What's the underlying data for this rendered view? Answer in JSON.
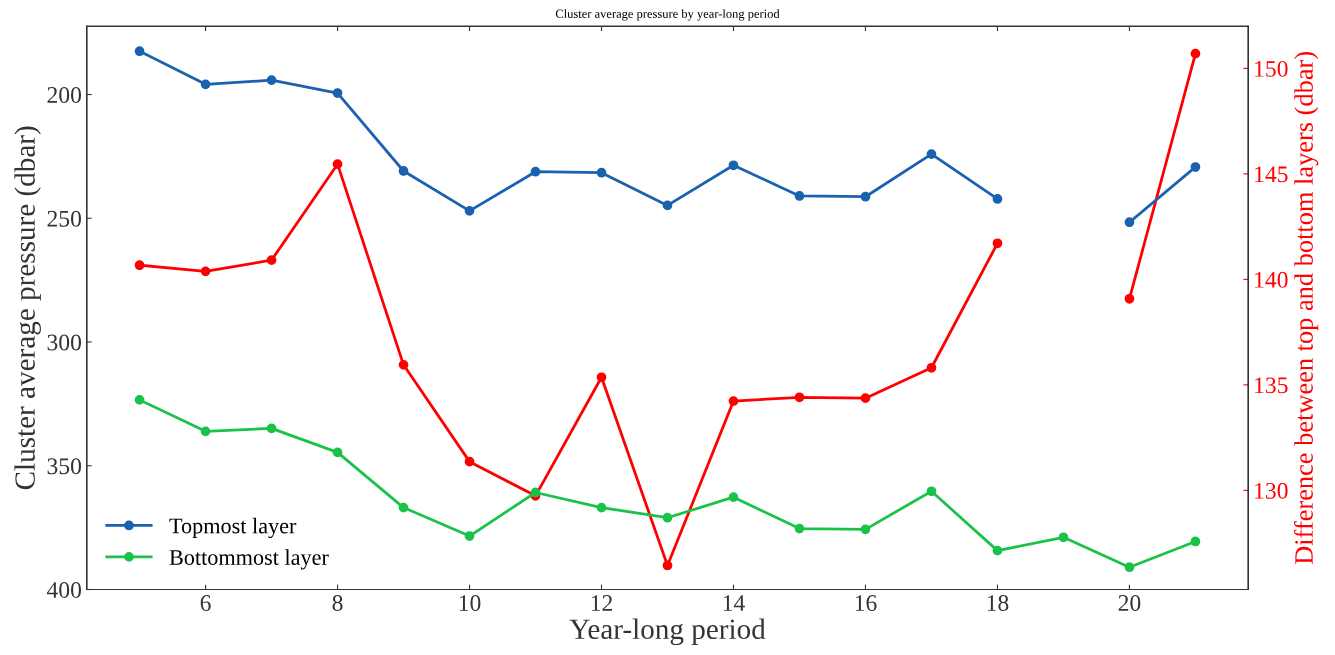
{
  "chart_data": {
    "type": "line",
    "title": "Cluster average pressure by year-long period",
    "xlabel": "Year-long period",
    "ylabel": "Cluster average pressure (dbar)",
    "y2label": "Difference between top and bottom layers (dbar)",
    "x": [
      5,
      6,
      7,
      8,
      9,
      10,
      11,
      12,
      13,
      14,
      15,
      16,
      17,
      18,
      19,
      20,
      21
    ],
    "series": [
      {
        "name": "Topmost layer",
        "color": "#1a62b0",
        "values": [
          182.5,
          195.9,
          194.2,
          199.4,
          230.9,
          247,
          231.2,
          231.6,
          244.8,
          228.6,
          241,
          241.3,
          224.1,
          242.2,
          null,
          251.6,
          229.3
        ]
      },
      {
        "name": "Bottommost layer",
        "color": "#1bc24a",
        "values": [
          323.4,
          336.1,
          334.9,
          344.6,
          366.9,
          378.4,
          360.8,
          366.9,
          371,
          362.7,
          375.4,
          375.7,
          360.3,
          384.3,
          378.9,
          391,
          380.6
        ]
      },
      {
        "color": "#ff0000",
        "axis": "y2",
        "values": [
          140.67,
          140.38,
          140.91,
          145.46,
          135.95,
          131.36,
          129.74,
          135.36,
          126.44,
          134.23,
          134.41,
          134.37,
          135.81,
          141.71,
          null,
          139.08,
          150.7
        ]
      }
    ],
    "xlim": [
      4.2,
      21.8
    ],
    "xticks": [
      6,
      8,
      10,
      12,
      14,
      16,
      18,
      20
    ],
    "ylim": [
      400,
      172.4
    ],
    "yticks": [
      200,
      250,
      300,
      350,
      400
    ],
    "y2lim": [
      125.3,
      152
    ],
    "y2ticks": [
      130,
      135,
      140,
      145,
      150
    ],
    "marker": "circle",
    "line_style": "solid",
    "grid": false,
    "legend": "bottom left"
  }
}
